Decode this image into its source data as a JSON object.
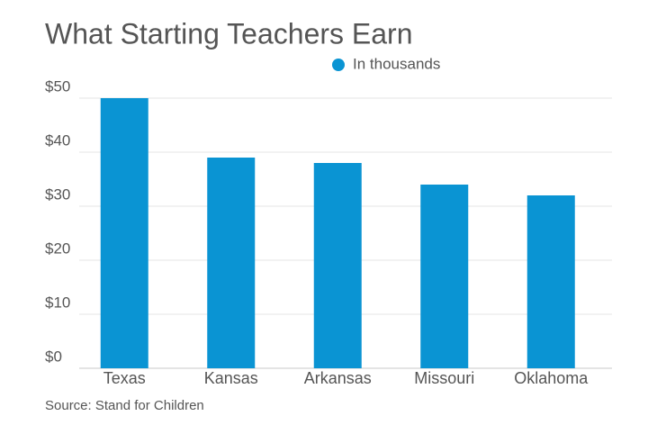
{
  "chart_data": {
    "type": "bar",
    "title": "What Starting Teachers Earn",
    "categories": [
      "Texas",
      "Kansas",
      "Arkansas",
      "Missouri",
      "Oklahoma"
    ],
    "series": [
      {
        "name": "In thousands",
        "color": "#0a94d3",
        "values": [
          50,
          39,
          38,
          34,
          32
        ]
      }
    ],
    "ylim": [
      0,
      50
    ],
    "yticks": [
      {
        "value": 0,
        "label": "$0"
      },
      {
        "value": 10,
        "label": "$10"
      },
      {
        "value": 20,
        "label": "$20"
      },
      {
        "value": 30,
        "label": "$30"
      },
      {
        "value": 40,
        "label": "$40"
      },
      {
        "value": 50,
        "label": "$50"
      }
    ],
    "grid": true,
    "legend": "top",
    "source": "Source: Stand for Children"
  }
}
